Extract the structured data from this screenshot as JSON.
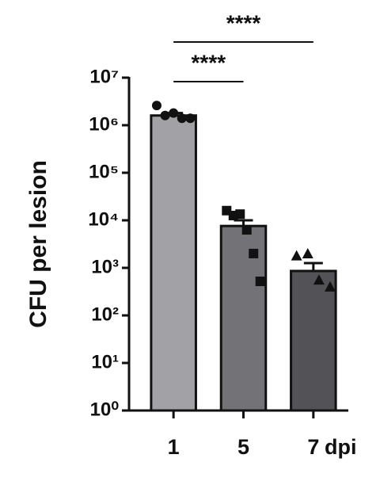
{
  "chart_data": {
    "type": "bar",
    "ylabel": "CFU per lesion",
    "xlabel": "dpi",
    "categories": [
      "1",
      "5",
      "7"
    ],
    "values": [
      1600000,
      7600.0,
      860
    ],
    "errors": [
      200000,
      2400,
      400
    ],
    "colors": [
      "#a2a2a6",
      "#737377",
      "#535357"
    ],
    "markers": [
      "circle",
      "square",
      "triangle"
    ],
    "points": [
      [
        2600000,
        1600000,
        1800000,
        1400000,
        1400000
      ],
      [
        16000,
        12600,
        13500,
        6300,
        2000,
        520
      ],
      [
        1800,
        2000,
        560,
        400
      ]
    ],
    "log_scale": true,
    "ylim": [
      1,
      10000000
    ],
    "yticks": [
      {
        "value": 1,
        "label": "10⁰"
      },
      {
        "value": 10,
        "label": "10¹"
      },
      {
        "value": 100,
        "label": "10²"
      },
      {
        "value": 1000,
        "label": "10³"
      },
      {
        "value": 10000,
        "label": "10⁴"
      },
      {
        "value": 100000,
        "label": "10⁵"
      },
      {
        "value": 1000000,
        "label": "10⁶"
      },
      {
        "value": 10000000,
        "label": "10⁷"
      }
    ],
    "comparisons": [
      {
        "label": "****",
        "categories": [
          "1",
          "7"
        ]
      },
      {
        "label": "****",
        "categories": [
          "1",
          "5"
        ]
      }
    ]
  }
}
